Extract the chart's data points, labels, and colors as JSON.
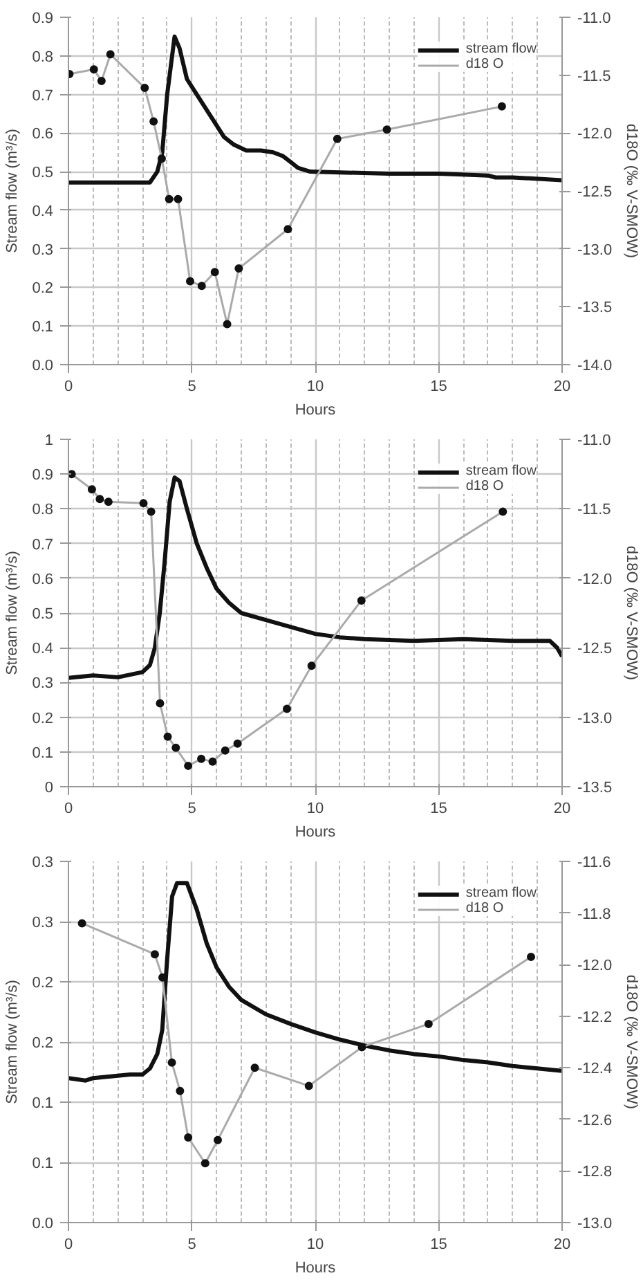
{
  "chart_data": [
    {
      "type": "line",
      "xlabel": "Hours",
      "ylabel": "Stream flow (m³/s)",
      "y2label": "d18O (‰ V-SMOW)",
      "xlim": [
        0,
        20
      ],
      "xticks": [
        0,
        5,
        10,
        15,
        20
      ],
      "ylim": [
        0,
        0.9
      ],
      "yticks": [
        {
          "value": 0,
          "label": "0.0"
        },
        0.1,
        0.2,
        0.3,
        0.4,
        0.5,
        0.6,
        0.7,
        0.8,
        0.9
      ],
      "y2lim": [
        -14,
        -11
      ],
      "y2ticks": [
        {
          "value": -14,
          "label": "-14.0"
        },
        -13.5,
        {
          "value": -13,
          "label": "-13.0"
        },
        -12.5,
        {
          "value": -12,
          "label": "-12.0"
        },
        -11.5,
        {
          "value": -11,
          "label": "-11.0"
        }
      ],
      "grid": true,
      "legend": "top right",
      "series": [
        {
          "name": "stream flow",
          "color": "#111111",
          "marker": "none",
          "x": [
            0,
            1,
            2,
            3,
            3.3,
            3.6,
            3.8,
            4.0,
            4.3,
            4.5,
            4.8,
            5.2,
            5.6,
            6.0,
            6.3,
            6.7,
            7.2,
            7.8,
            8.3,
            8.7,
            9.0,
            9.3,
            9.8,
            11,
            13,
            15,
            17,
            17.3,
            18,
            20
          ],
          "values": [
            0.472,
            0.472,
            0.472,
            0.472,
            0.472,
            0.5,
            0.55,
            0.7,
            0.85,
            0.82,
            0.74,
            0.7,
            0.66,
            0.62,
            0.59,
            0.57,
            0.555,
            0.555,
            0.55,
            0.54,
            0.525,
            0.51,
            0.5,
            0.498,
            0.495,
            0.495,
            0.49,
            0.485,
            0.485,
            0.478
          ]
        },
        {
          "name": "d18 O",
          "color": "#aaaaaa",
          "axis": "y2",
          "marker": "circle",
          "x": [
            0.04,
            1.03,
            1.34,
            1.7,
            3.09,
            3.45,
            3.78,
            4.08,
            4.44,
            4.93,
            5.4,
            5.93,
            6.43,
            6.9,
            8.89,
            10.89,
            12.9,
            17.56
          ],
          "values": [
            -11.49,
            -11.45,
            -11.55,
            -11.32,
            -11.61,
            -11.9,
            -12.22,
            -12.57,
            -12.57,
            -13.28,
            -13.32,
            -13.2,
            -13.65,
            -13.17,
            -12.83,
            -12.05,
            -11.97,
            -11.77
          ]
        }
      ]
    },
    {
      "type": "line",
      "xlabel": "Hours",
      "ylabel": "Stream flow (m³/s)",
      "y2label": "d18O (‰ V-SMOW)",
      "xlim": [
        0,
        20
      ],
      "xticks": [
        0,
        5,
        10,
        15,
        20
      ],
      "ylim": [
        0,
        1
      ],
      "yticks": [
        0,
        0.1,
        0.2,
        0.3,
        0.4,
        0.5,
        0.6,
        0.7,
        0.8,
        0.9,
        1
      ],
      "y2lim": [
        -13.5,
        -11
      ],
      "y2ticks": [
        -13.5,
        {
          "value": -13,
          "label": "-13.0"
        },
        -12.5,
        {
          "value": -12,
          "label": "-12.0"
        },
        -11.5,
        {
          "value": -11,
          "label": "-11.0"
        }
      ],
      "grid": true,
      "legend": "top right",
      "series": [
        {
          "name": "stream flow",
          "color": "#111111",
          "marker": "none",
          "x": [
            0,
            1,
            2,
            3,
            3.3,
            3.5,
            3.7,
            3.9,
            4.1,
            4.3,
            4.5,
            4.8,
            5.2,
            5.6,
            6.0,
            6.5,
            7,
            8,
            9,
            10,
            11,
            12,
            14,
            16,
            18,
            19.5,
            19.8,
            20
          ],
          "values": [
            0.313,
            0.32,
            0.315,
            0.33,
            0.35,
            0.4,
            0.5,
            0.65,
            0.82,
            0.89,
            0.88,
            0.8,
            0.7,
            0.63,
            0.57,
            0.53,
            0.5,
            0.48,
            0.46,
            0.44,
            0.43,
            0.425,
            0.42,
            0.425,
            0.42,
            0.42,
            0.4,
            0.375
          ]
        },
        {
          "name": "d18 O",
          "color": "#aaaaaa",
          "axis": "y2",
          "marker": "circle",
          "x": [
            0.13,
            0.95,
            1.27,
            1.62,
            3.04,
            3.35,
            3.71,
            4.02,
            4.35,
            4.85,
            5.38,
            5.84,
            6.35,
            6.85,
            8.85,
            9.85,
            11.87,
            17.6
          ],
          "values": [
            -11.25,
            -11.36,
            -11.43,
            -11.45,
            -11.46,
            -11.52,
            -12.9,
            -13.14,
            -13.22,
            -13.35,
            -13.3,
            -13.32,
            -13.24,
            -13.19,
            -12.94,
            -12.63,
            -12.16,
            -11.52
          ]
        }
      ]
    },
    {
      "type": "line",
      "xlabel": "Hours",
      "ylabel": "Stream flow (m³/s)",
      "y2label": "d18O (‰ V-SMOW)",
      "xlim": [
        0,
        20
      ],
      "xticks": [
        0,
        5,
        10,
        15,
        20
      ],
      "ylim": [
        0,
        0.3
      ],
      "yticks": [
        {
          "value": 0,
          "label": "0.0"
        },
        {
          "value": 0.05,
          "label": "0.1"
        },
        0.1,
        {
          "value": 0.15,
          "label": "0.2"
        },
        0.2,
        {
          "value": 0.25,
          "label": "0.3"
        },
        0.3
      ],
      "y2lim": [
        -13,
        -11.6
      ],
      "y2ticks": [
        {
          "value": -13,
          "label": "-13.0"
        },
        -12.8,
        -12.6,
        -12.4,
        -12.2,
        {
          "value": -12,
          "label": "-12.0"
        },
        -11.8,
        -11.6
      ],
      "grid": true,
      "legend": "top right",
      "series": [
        {
          "name": "stream flow",
          "color": "#111111",
          "marker": "none",
          "x": [
            0,
            0.7,
            1,
            2.5,
            3,
            3.3,
            3.6,
            3.8,
            4.0,
            4.2,
            4.4,
            4.8,
            5.2,
            5.6,
            6.0,
            6.5,
            7,
            8,
            9,
            10,
            11,
            12,
            13,
            14,
            15,
            16,
            17,
            18,
            19,
            20
          ],
          "values": [
            0.12,
            0.118,
            0.12,
            0.123,
            0.123,
            0.128,
            0.14,
            0.16,
            0.219,
            0.271,
            0.282,
            0.282,
            0.26,
            0.232,
            0.212,
            0.196,
            0.185,
            0.173,
            0.165,
            0.158,
            0.152,
            0.147,
            0.143,
            0.14,
            0.138,
            0.135,
            0.133,
            0.13,
            0.128,
            0.126
          ]
        },
        {
          "name": "d18 O",
          "color": "#aaaaaa",
          "axis": "y2",
          "marker": "circle",
          "x": [
            0.55,
            3.5,
            3.81,
            4.19,
            4.52,
            4.85,
            5.54,
            6.05,
            7.55,
            9.74,
            11.89,
            14.59,
            18.74
          ],
          "values": [
            -11.84,
            -11.96,
            -12.05,
            -12.38,
            -12.49,
            -12.67,
            -12.77,
            -12.68,
            -12.4,
            -12.47,
            -12.32,
            -12.23,
            -11.97
          ]
        }
      ]
    }
  ]
}
